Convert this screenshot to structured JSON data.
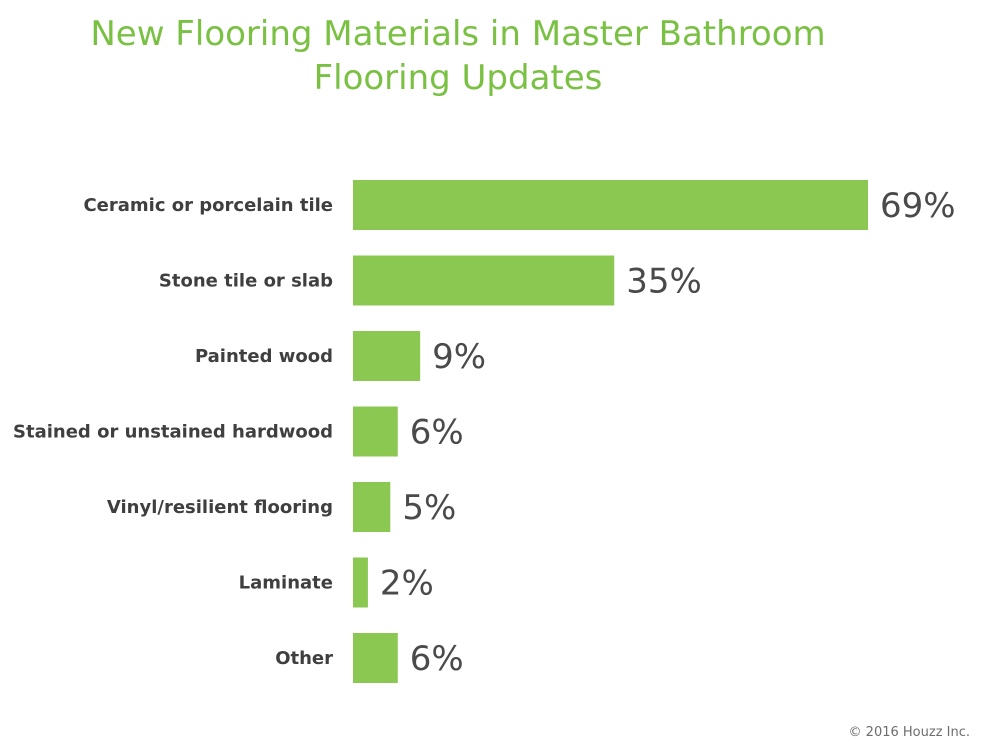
{
  "chart": {
    "title_line1": "New Flooring Materials in Master Bathroom",
    "title_line2": "Flooring Updates"
  },
  "footer": {
    "copyright": "© 2016 Houzz Inc."
  },
  "colors": {
    "bar": "#8bc852",
    "title": "#7ac143"
  },
  "chart_data": {
    "type": "bar",
    "orientation": "horizontal",
    "title": "New Flooring Materials in Master Bathroom Flooring Updates",
    "categories": [
      "Ceramic or porcelain tile",
      "Stone tile or slab",
      "Painted wood",
      "Stained or unstained hardwood",
      "Vinyl/resilient flooring",
      "Laminate",
      "Other"
    ],
    "values": [
      69,
      35,
      9,
      6,
      5,
      2,
      6
    ],
    "value_labels": [
      "69%",
      "35%",
      "9%",
      "6%",
      "5%",
      "2%",
      "6%"
    ],
    "xlim": [
      0,
      69
    ],
    "grid": false,
    "legend": "none"
  }
}
